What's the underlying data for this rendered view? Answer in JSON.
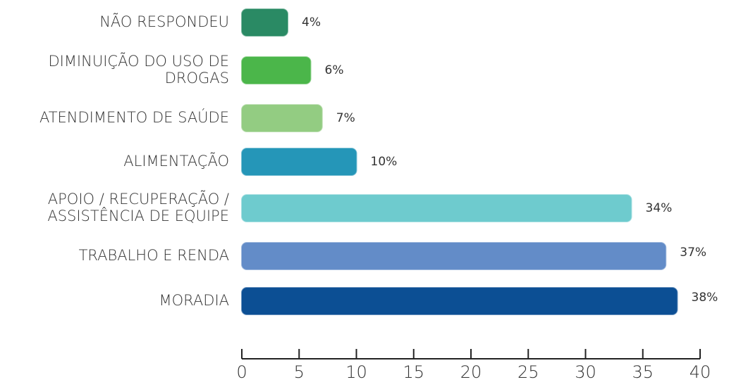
{
  "chart_data": {
    "type": "bar",
    "orientation": "horizontal",
    "categories": [
      "NÃO RESPONDEU",
      "DIMINUIÇÃO DO USO DE\nDROGAS",
      "ATENDIMENTO DE SAÚDE",
      "ALIMENTAÇÃO",
      "APOIO / RECUPERAÇÃO /\nASSISTÊNCIA DE EQUIPE",
      "TRABALHO E RENDA",
      "MORADIA"
    ],
    "values": [
      4,
      6,
      7,
      10,
      34,
      37,
      38
    ],
    "value_labels": [
      "4%",
      "6%",
      "7%",
      "10%",
      "34%",
      "37%",
      "38%"
    ],
    "colors": [
      "#2a8a64",
      "#4bb64a",
      "#93cc82",
      "#2596b8",
      "#6ecbce",
      "#638cc8",
      "#0c4f94"
    ],
    "xlim": [
      0,
      40
    ],
    "xticks": [
      0,
      5,
      10,
      15,
      20,
      25,
      30,
      35,
      40
    ],
    "grid": false
  }
}
